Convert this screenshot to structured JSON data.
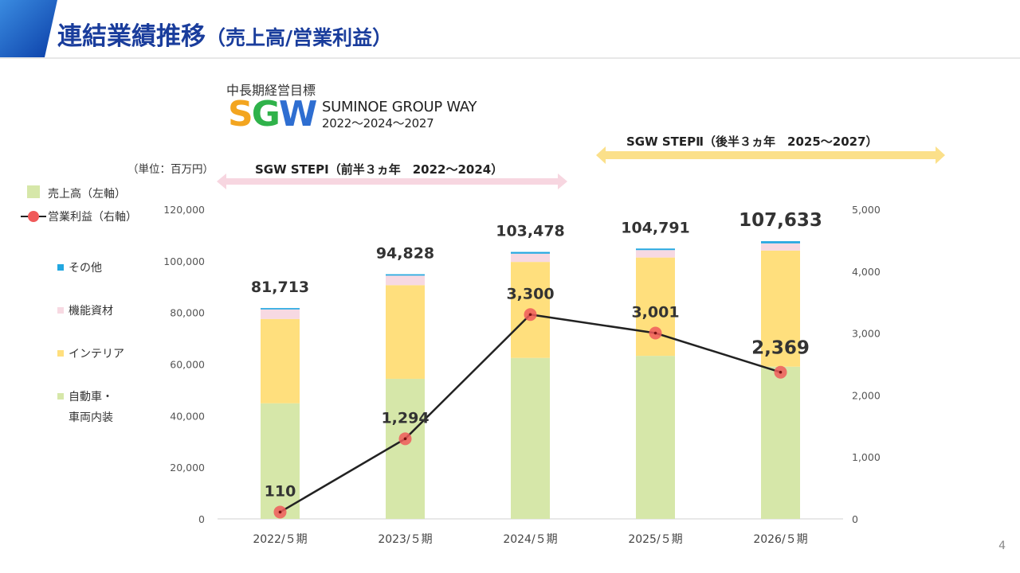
{
  "slide": {
    "title_main": "連結業績推移",
    "title_sub": "（売上高/営業利益）",
    "page_number": "4"
  },
  "sgw": {
    "goal_label": "中長期経営目標",
    "logo_text": "SGW",
    "logo_s": "S",
    "logo_g": "G",
    "logo_w": "W",
    "name": "SUMINOE GROUP WAY",
    "years": "2022～2024～2027"
  },
  "unit": "（単位：百万円）",
  "legend": {
    "sales": "売上高（左軸）",
    "profit": "営業利益（右軸）",
    "other": "その他",
    "functional": "機能資材",
    "interior": "インテリア",
    "auto_line1": "自動車・",
    "auto_line2": "車両内装"
  },
  "steps": {
    "step1": "SGW STEPⅠ（前半３ヵ年　2022～2024）",
    "step2": "SGW STEPⅡ（後半３ヵ年　2025～2027）"
  },
  "colors": {
    "automotive": "#d6e7a9",
    "interior": "#ffdf7d",
    "functional": "#f7d9e2",
    "other": "#22a7e0",
    "line": "#222222",
    "marker": "#f05a5a",
    "step1_arrow": "#f7d6e0",
    "step2_arrow": "#fbe08a",
    "title": "#1a3d9c"
  },
  "chart_data": {
    "type": "bar",
    "stacked": true,
    "categories": [
      "2022/５期",
      "2023/５期",
      "2024/５期",
      "2025/５期",
      "2026/５期"
    ],
    "series": [
      {
        "name": "自動車・車両内装",
        "values": [
          44800,
          54300,
          62400,
          63200,
          59000
        ]
      },
      {
        "name": "インテリア",
        "values": [
          32700,
          36300,
          37200,
          38100,
          45000
        ]
      },
      {
        "name": "機能資材",
        "values": [
          3700,
          3700,
          3200,
          2900,
          2800
        ]
      },
      {
        "name": "その他",
        "values": [
          513,
          528,
          678,
          591,
          833
        ]
      }
    ],
    "totals": [
      81713,
      94828,
      103478,
      104791,
      107633
    ],
    "total_labels": [
      "81,713",
      "94,828",
      "103,478",
      "104,791",
      "107,633"
    ],
    "line": {
      "name": "営業利益（右軸）",
      "values": [
        110,
        1294,
        3300,
        3001,
        2369
      ],
      "labels": [
        "110",
        "1,294",
        "3,300",
        "3,001",
        "2,369"
      ]
    },
    "y_left": {
      "min": 0,
      "max": 120000,
      "ticks": [
        "0",
        "20,000",
        "40,000",
        "60,000",
        "80,000",
        "100,000",
        "120,000"
      ]
    },
    "y_right": {
      "min": 0,
      "max": 5000,
      "ticks": [
        "0",
        "1,000",
        "2,000",
        "3,000",
        "4,000",
        "5,000"
      ]
    },
    "grid": false,
    "legend_position": "left"
  }
}
